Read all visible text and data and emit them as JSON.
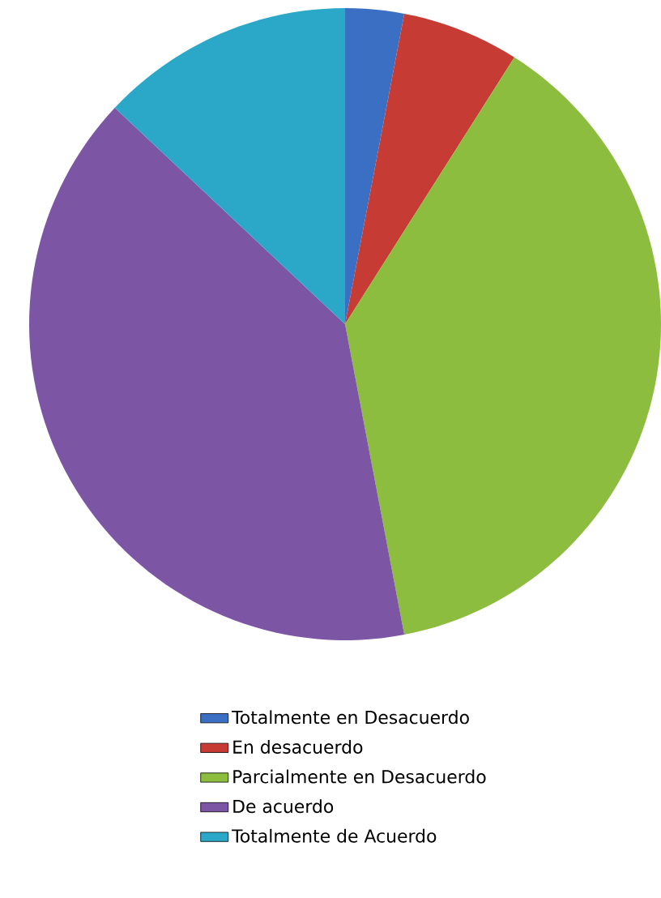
{
  "chart_data": {
    "type": "pie",
    "categories": [
      "Totalmente en Desacuerdo",
      "En desacuerdo",
      "Parcialmente en Desacuerdo",
      "De acuerdo",
      "Totalmente de Acuerdo"
    ],
    "values": [
      3,
      6,
      38,
      40,
      13
    ],
    "colors": [
      "#3a6fc4",
      "#c73b35",
      "#8dbd3f",
      "#7c55a4",
      "#2ba7c8"
    ],
    "legend": "bottom"
  }
}
